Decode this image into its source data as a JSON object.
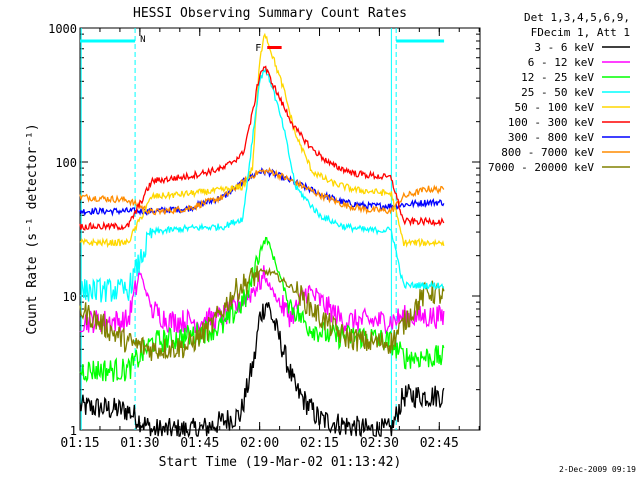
{
  "chart_data": {
    "type": "line",
    "title": "HESSI Observing Summary Count Rates",
    "xlabel": "Start Time (19-Mar-02 01:13:42)",
    "ylabel": "Count Rate (s⁻¹ detector⁻¹)",
    "yscale": "log",
    "ylim": [
      1,
      1000
    ],
    "xlim": [
      1.25,
      2.92
    ],
    "x_ticks": [
      "01:15",
      "01:30",
      "01:45",
      "02:00",
      "02:15",
      "02:30",
      "02:45"
    ],
    "y_ticks": [
      "1",
      "10",
      "100",
      "1000"
    ],
    "legend_header": [
      "Det 1,3,4,5,6,9,",
      "FDecim 1, Att 1"
    ],
    "legend_position": "right",
    "annotations": {
      "night_marker": "N",
      "flare_marker": "F"
    },
    "series": [
      {
        "name": "3 - 6 keV",
        "color": "#000000",
        "x": [
          1.25,
          1.45,
          1.55,
          1.75,
          1.92,
          1.98,
          2.0,
          2.03,
          2.08,
          2.15,
          2.25,
          2.45,
          2.55,
          2.6,
          2.7,
          2.77
        ],
        "y": [
          1.5,
          1.4,
          1.0,
          1.0,
          1.3,
          3.5,
          7.0,
          9.0,
          5.0,
          2.0,
          1.2,
          1.0,
          1.0,
          1.8,
          1.8,
          1.8
        ]
      },
      {
        "name": "6 - 12 keV",
        "color": "#ff00ff",
        "x": [
          1.25,
          1.45,
          1.5,
          1.55,
          1.62,
          1.75,
          1.85,
          1.95,
          2.02,
          2.08,
          2.13,
          2.2,
          2.35,
          2.45,
          2.55,
          2.6,
          2.7,
          2.77
        ],
        "y": [
          6.5,
          6.5,
          15.0,
          8.0,
          6.5,
          6.5,
          7.0,
          10.0,
          14.0,
          9.0,
          7.0,
          11.0,
          6.5,
          6.5,
          6.5,
          7.0,
          7.0,
          7.0
        ]
      },
      {
        "name": "12 - 25 keV",
        "color": "#00ff00",
        "x": [
          1.25,
          1.45,
          1.55,
          1.7,
          1.85,
          1.95,
          2.0,
          2.03,
          2.08,
          2.12,
          2.2,
          2.3,
          2.45,
          2.55,
          2.6,
          2.7,
          2.77
        ],
        "y": [
          2.8,
          2.8,
          4.5,
          5.0,
          6.0,
          10.0,
          22.0,
          27.0,
          15.0,
          9.0,
          6.0,
          5.0,
          5.0,
          4.5,
          3.5,
          3.5,
          3.5
        ]
      },
      {
        "name": "25 - 50 keV",
        "color": "#00ffff",
        "x": [
          1.25,
          1.45,
          1.55,
          1.7,
          1.85,
          1.93,
          1.97,
          2.0,
          2.02,
          2.05,
          2.1,
          2.15,
          2.25,
          2.35,
          2.45,
          2.55,
          2.6,
          2.7,
          2.77
        ],
        "y": [
          11.0,
          11.0,
          30.0,
          32.0,
          33.0,
          38.0,
          150.0,
          400.0,
          500.0,
          380.0,
          180.0,
          65.0,
          40.0,
          33.0,
          31.0,
          31.0,
          12.0,
          12.0,
          12.0
        ]
      },
      {
        "name": "50 - 100 keV",
        "color": "#ffd700",
        "x": [
          1.25,
          1.45,
          1.55,
          1.7,
          1.85,
          1.93,
          1.97,
          2.0,
          2.02,
          2.05,
          2.1,
          2.15,
          2.22,
          2.3,
          2.4,
          2.55,
          2.6,
          2.7,
          2.77
        ],
        "y": [
          25.0,
          25.0,
          55.0,
          58.0,
          62.0,
          65.0,
          90.0,
          550.0,
          950.0,
          650.0,
          350.0,
          160.0,
          85.0,
          70.0,
          62.0,
          58.0,
          25.0,
          25.0,
          25.0
        ]
      },
      {
        "name": "100 - 300 keV",
        "color": "#ff0000",
        "x": [
          1.25,
          1.45,
          1.55,
          1.7,
          1.85,
          1.93,
          1.97,
          2.0,
          2.02,
          2.05,
          2.1,
          2.15,
          2.22,
          2.3,
          2.4,
          2.55,
          2.6,
          2.7,
          2.77
        ],
        "y": [
          33.0,
          33.0,
          72.0,
          78.0,
          90.0,
          115.0,
          230.0,
          450.0,
          520.0,
          400.0,
          260.0,
          175.0,
          125.0,
          95.0,
          82.0,
          76.0,
          36.0,
          36.0,
          36.0
        ]
      },
      {
        "name": "300 - 800 keV",
        "color": "#0000ff",
        "x": [
          1.25,
          1.45,
          1.55,
          1.7,
          1.85,
          1.95,
          2.0,
          2.05,
          2.15,
          2.25,
          2.35,
          2.45,
          2.55,
          2.6,
          2.7,
          2.77
        ],
        "y": [
          43.0,
          43.0,
          43.0,
          45.0,
          55.0,
          75.0,
          85.0,
          83.0,
          70.0,
          58.0,
          50.0,
          47.0,
          47.0,
          48.0,
          50.0,
          50.0
        ]
      },
      {
        "name": "800 - 7000 keV",
        "color": "#ff8c00",
        "x": [
          1.25,
          1.45,
          1.55,
          1.7,
          1.85,
          1.95,
          2.0,
          2.05,
          2.15,
          2.25,
          2.35,
          2.45,
          2.55,
          2.6,
          2.7,
          2.77
        ],
        "y": [
          55.0,
          52.0,
          42.0,
          45.0,
          55.0,
          75.0,
          85.0,
          85.0,
          70.0,
          57.0,
          48.0,
          44.0,
          43.0,
          55.0,
          63.0,
          62.0
        ]
      },
      {
        "name": "7000 - 20000 keV",
        "color": "#808000",
        "x": [
          1.25,
          1.35,
          1.45,
          1.55,
          1.7,
          1.8,
          1.9,
          2.0,
          2.05,
          2.15,
          2.25,
          2.35,
          2.45,
          2.55,
          2.62,
          2.7,
          2.77
        ],
        "y": [
          8.0,
          6.0,
          4.5,
          4.0,
          4.2,
          6.0,
          11.0,
          15.0,
          15.0,
          11.0,
          7.0,
          5.0,
          4.5,
          4.5,
          7.0,
          11.0,
          10.0
        ]
      }
    ]
  },
  "saa_level": 800,
  "saa_intervals": [
    [
      1.25,
      1.48
    ],
    [
      2.57,
      2.77
    ]
  ],
  "night_boundaries": [
    1.48,
    2.57
  ],
  "flare_bar": [
    1.99,
    2.05
  ],
  "footer_date": "2-Dec-2009 09:19"
}
